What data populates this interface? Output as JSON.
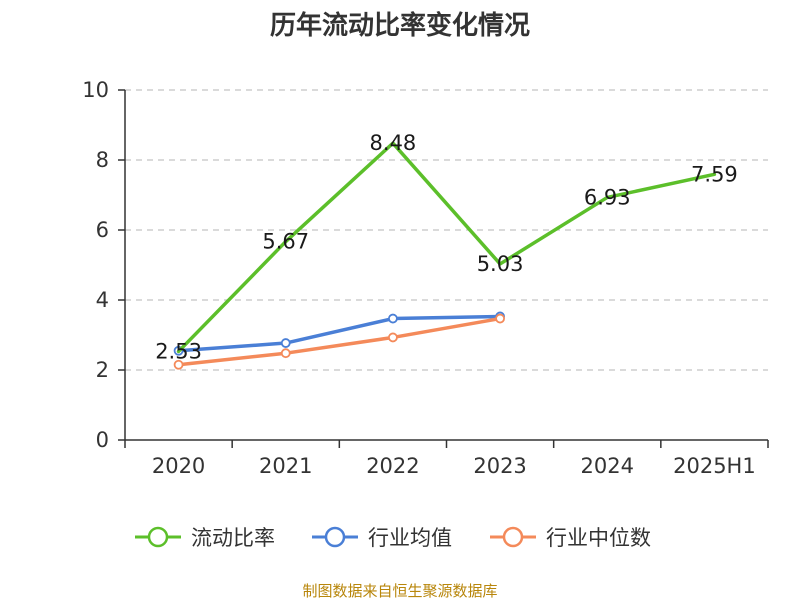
{
  "chart_data": {
    "type": "line",
    "title": "历年流动比率变化情况",
    "categories": [
      "2020",
      "2021",
      "2022",
      "2023",
      "2024",
      "2025H1"
    ],
    "ylim": [
      0,
      10
    ],
    "yticks": [
      0,
      2,
      4,
      6,
      8,
      10
    ],
    "grid": true,
    "legend_position": "bottom",
    "series": [
      {
        "name": "流动比率",
        "color": "#5cbf2a",
        "values": [
          2.53,
          5.67,
          8.48,
          5.03,
          6.93,
          7.59
        ],
        "labels": [
          "2.53",
          "5.67",
          "8.48",
          "5.03",
          "6.93",
          "7.59"
        ],
        "markers": false
      },
      {
        "name": "行业均值",
        "color": "#4a7fd6",
        "values": [
          2.55,
          2.77,
          3.47,
          3.53,
          null,
          null
        ],
        "markers": true
      },
      {
        "name": "行业中位数",
        "color": "#f48a5a",
        "values": [
          2.15,
          2.48,
          2.93,
          3.47,
          null,
          null
        ],
        "markers": true
      }
    ],
    "source": "制图数据来自恒生聚源数据库"
  }
}
